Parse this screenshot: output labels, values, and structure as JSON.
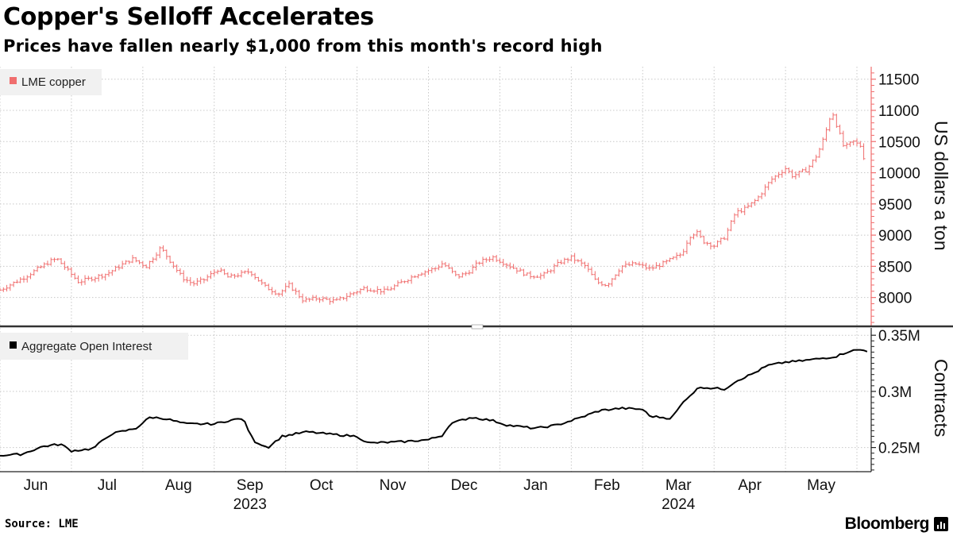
{
  "title": "Copper's Selloff Accelerates",
  "subtitle": "Prices have fallen nearly $1,000 from this month's record high",
  "source": "Source: LME",
  "brand": "Bloomberg",
  "colors": {
    "copper": "#f06e6e",
    "open_interest": "#000000",
    "grid": "#c8c8c8",
    "legend_bg": "#f1f1f1"
  },
  "chart_data": [
    {
      "type": "line",
      "style": "ohlc",
      "legend": "LME copper",
      "ylabel": "US dollars a ton",
      "ylim": [
        7550,
        11700
      ],
      "yticks": [
        8000,
        8500,
        9000,
        9500,
        10000,
        10500,
        11000,
        11500
      ],
      "x_range": [
        0,
        12.2
      ],
      "x_units": "months since 2023-05-25",
      "anchors": [
        [
          0,
          8120
        ],
        [
          0.35,
          8330
        ],
        [
          0.7,
          8580
        ],
        [
          0.8,
          8620
        ],
        [
          0.95,
          8430
        ],
        [
          1.1,
          8250
        ],
        [
          1.5,
          8380
        ],
        [
          1.7,
          8520
        ],
        [
          1.85,
          8620
        ],
        [
          2.05,
          8500
        ],
        [
          2.25,
          8800
        ],
        [
          2.35,
          8640
        ],
        [
          2.55,
          8320
        ],
        [
          2.7,
          8220
        ],
        [
          2.85,
          8280
        ],
        [
          3.05,
          8450
        ],
        [
          3.2,
          8320
        ],
        [
          3.5,
          8420
        ],
        [
          3.7,
          8180
        ],
        [
          3.9,
          8060
        ],
        [
          4.05,
          8200
        ],
        [
          4.25,
          7950
        ],
        [
          4.45,
          7990
        ],
        [
          4.7,
          7940
        ],
        [
          4.9,
          8050
        ],
        [
          5.1,
          8150
        ],
        [
          5.4,
          8100
        ],
        [
          5.6,
          8230
        ],
        [
          5.85,
          8380
        ],
        [
          6.1,
          8470
        ],
        [
          6.2,
          8550
        ],
        [
          6.4,
          8330
        ],
        [
          6.55,
          8400
        ],
        [
          6.7,
          8560
        ],
        [
          6.9,
          8650
        ],
        [
          7.05,
          8560
        ],
        [
          7.2,
          8470
        ],
        [
          7.4,
          8350
        ],
        [
          7.6,
          8350
        ],
        [
          7.85,
          8570
        ],
        [
          8.0,
          8640
        ],
        [
          8.2,
          8500
        ],
        [
          8.35,
          8250
        ],
        [
          8.5,
          8200
        ],
        [
          8.7,
          8500
        ],
        [
          8.9,
          8540
        ],
        [
          9.1,
          8460
        ],
        [
          9.3,
          8550
        ],
        [
          9.55,
          8700
        ],
        [
          9.65,
          8980
        ],
        [
          9.75,
          9050
        ],
        [
          9.85,
          8900
        ],
        [
          10.0,
          8830
        ],
        [
          10.15,
          8970
        ],
        [
          10.3,
          9360
        ],
        [
          10.45,
          9430
        ],
        [
          10.6,
          9580
        ],
        [
          10.8,
          9890
        ],
        [
          11.0,
          10070
        ],
        [
          11.1,
          9950
        ],
        [
          11.3,
          10050
        ],
        [
          11.45,
          10300
        ],
        [
          11.55,
          10600
        ],
        [
          11.65,
          11000
        ],
        [
          11.72,
          10750
        ],
        [
          11.82,
          10400
        ],
        [
          11.95,
          10500
        ],
        [
          12.05,
          10430
        ],
        [
          12.12,
          10150
        ]
      ]
    },
    {
      "type": "line",
      "legend": "Aggregate Open Interest",
      "ylabel": "Contracts",
      "ylim": [
        0.2285,
        0.3565
      ],
      "yticks": [
        0.25,
        0.3,
        0.35
      ],
      "ytick_labels": [
        "0.25M",
        "0.3M",
        "0.35M"
      ],
      "x_range": [
        0,
        12.2
      ],
      "x_units": "months since 2023-05-25",
      "anchors": [
        [
          0,
          0.243
        ],
        [
          0.3,
          0.244
        ],
        [
          0.6,
          0.251
        ],
        [
          0.85,
          0.253
        ],
        [
          1.0,
          0.247
        ],
        [
          1.3,
          0.249
        ],
        [
          1.55,
          0.262
        ],
        [
          1.9,
          0.267
        ],
        [
          2.1,
          0.277
        ],
        [
          2.3,
          0.276
        ],
        [
          2.6,
          0.271
        ],
        [
          3.0,
          0.271
        ],
        [
          3.2,
          0.274
        ],
        [
          3.4,
          0.276
        ],
        [
          3.55,
          0.256
        ],
        [
          3.75,
          0.25
        ],
        [
          3.95,
          0.26
        ],
        [
          4.3,
          0.264
        ],
        [
          4.6,
          0.262
        ],
        [
          5.0,
          0.26
        ],
        [
          5.15,
          0.254
        ],
        [
          5.6,
          0.255
        ],
        [
          6.0,
          0.257
        ],
        [
          6.2,
          0.261
        ],
        [
          6.3,
          0.271
        ],
        [
          6.6,
          0.277
        ],
        [
          6.9,
          0.274
        ],
        [
          7.1,
          0.27
        ],
        [
          7.5,
          0.267
        ],
        [
          7.8,
          0.27
        ],
        [
          8.1,
          0.276
        ],
        [
          8.4,
          0.283
        ],
        [
          8.7,
          0.285
        ],
        [
          9.0,
          0.284
        ],
        [
          9.1,
          0.278
        ],
        [
          9.4,
          0.276
        ],
        [
          9.6,
          0.293
        ],
        [
          9.8,
          0.304
        ],
        [
          9.95,
          0.303
        ],
        [
          10.15,
          0.302
        ],
        [
          10.3,
          0.309
        ],
        [
          10.55,
          0.316
        ],
        [
          10.75,
          0.323
        ],
        [
          11.0,
          0.326
        ],
        [
          11.2,
          0.327
        ],
        [
          11.45,
          0.329
        ],
        [
          11.7,
          0.331
        ],
        [
          11.9,
          0.336
        ],
        [
          12.05,
          0.337
        ],
        [
          12.15,
          0.336
        ]
      ]
    }
  ],
  "x_axis": {
    "months": [
      {
        "label": "Jun",
        "pos": 0.5
      },
      {
        "label": "Jul",
        "pos": 1.5
      },
      {
        "label": "Aug",
        "pos": 2.5
      },
      {
        "label": "Sep",
        "pos": 3.5
      },
      {
        "label": "Oct",
        "pos": 4.5
      },
      {
        "label": "Nov",
        "pos": 5.5
      },
      {
        "label": "Dec",
        "pos": 6.5
      },
      {
        "label": "Jan",
        "pos": 7.5
      },
      {
        "label": "Feb",
        "pos": 8.5
      },
      {
        "label": "Mar",
        "pos": 9.5
      },
      {
        "label": "Apr",
        "pos": 10.5
      },
      {
        "label": "May",
        "pos": 11.5
      }
    ],
    "years": [
      {
        "label": "2023",
        "pos": 3.5
      },
      {
        "label": "2024",
        "pos": 9.5
      }
    ],
    "gridlines": [
      0,
      1,
      2,
      3,
      4,
      5,
      6,
      7,
      8,
      9,
      10,
      11,
      12
    ]
  }
}
